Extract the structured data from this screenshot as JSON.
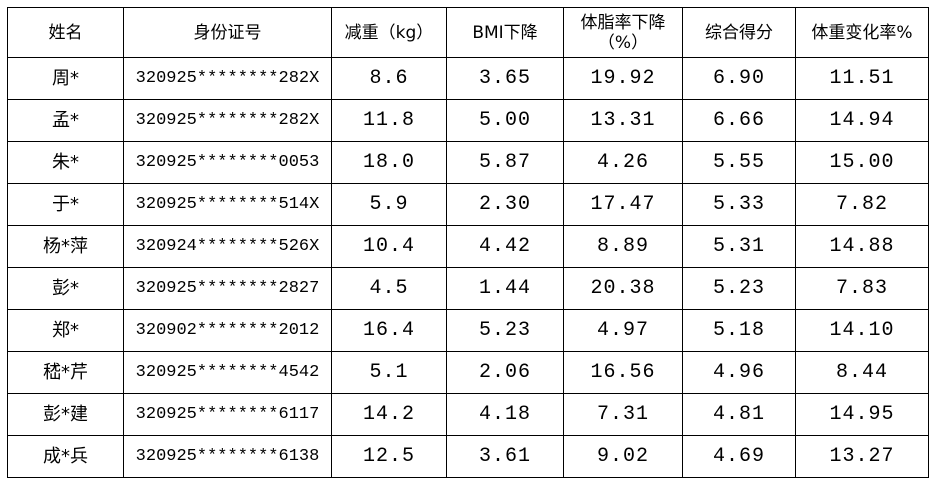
{
  "table": {
    "header": [
      "姓名",
      "身份证号",
      "减重（kg）",
      "BMI下降",
      "体脂率下降（%）",
      "综合得分",
      "体重变化率%"
    ],
    "rows": [
      [
        "周*",
        "320925********282X",
        "8.6",
        "3.65",
        "19.92",
        "6.90",
        "11.51"
      ],
      [
        "孟*",
        "320925********282X",
        "11.8",
        "5.00",
        "13.31",
        "6.66",
        "14.94"
      ],
      [
        "朱*",
        "320925********0053",
        "18.0",
        "5.87",
        "4.26",
        "5.55",
        "15.00"
      ],
      [
        "于*",
        "320925********514X",
        "5.9",
        "2.30",
        "17.47",
        "5.33",
        "7.82"
      ],
      [
        "杨*萍",
        "320924********526X",
        "10.4",
        "4.42",
        "8.89",
        "5.31",
        "14.88"
      ],
      [
        "彭*",
        "320925********2827",
        "4.5",
        "1.44",
        "20.38",
        "5.23",
        "7.83"
      ],
      [
        "郑*",
        "320902********2012",
        "16.4",
        "5.23",
        "4.97",
        "5.18",
        "14.10"
      ],
      [
        "嵇*芹",
        "320925********4542",
        "5.1",
        "2.06",
        "16.56",
        "4.96",
        "8.44"
      ],
      [
        "彭*建",
        "320925********6117",
        "14.2",
        "4.18",
        "7.31",
        "4.81",
        "14.95"
      ],
      [
        "成*兵",
        "320925********6138",
        "12.5",
        "3.61",
        "9.02",
        "4.69",
        "13.27"
      ]
    ]
  }
}
